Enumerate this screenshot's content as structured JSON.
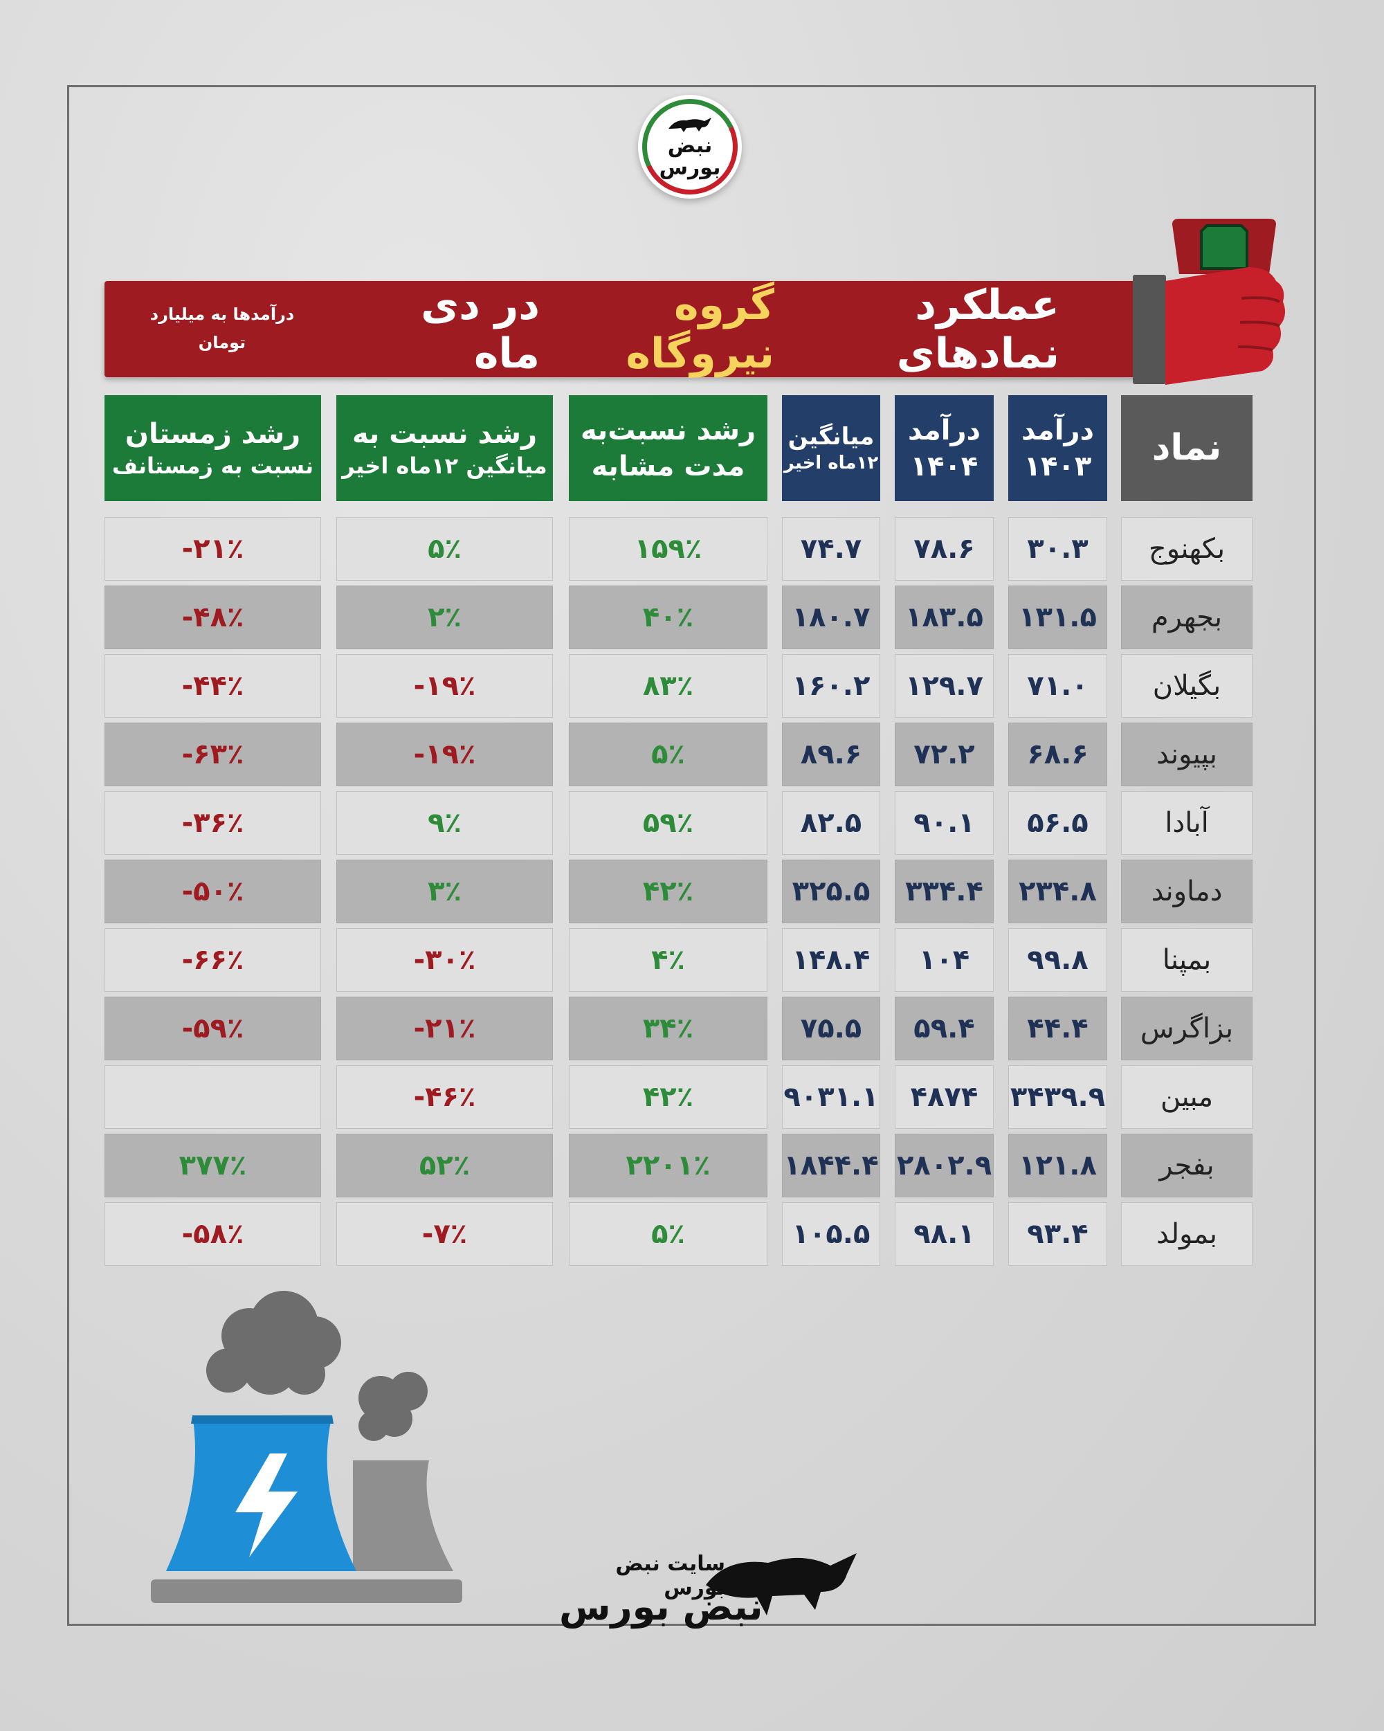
{
  "logo": {
    "name": "نبض بورس"
  },
  "banner": {
    "title_part1": "عملکرد نمادهای",
    "title_highlight": "گروه نیروگاه",
    "title_part2": "در دی ماه",
    "note": "درآمدها به میلیارد تومان",
    "highlight_color": "#f5d35c",
    "background_color": "#9e1b21"
  },
  "table": {
    "headers": {
      "symbol": "نماد",
      "rev1403_line1": "درآمد",
      "rev1403_line2": "۱۴۰۳",
      "rev1404_line1": "درآمد",
      "rev1404_line2": "۱۴۰۴",
      "avg_line1": "میانگین",
      "avg_line2": "۱۲ماه اخیر",
      "g1_line1": "رشد نسبت‌به",
      "g1_line2": "مدت مشابه",
      "g2_line1": "رشد نسبت به",
      "g2_line2": "میانگین ۱۲ماه اخیر",
      "g3_line1": "رشد زمستان",
      "g3_line2": "نسبت به زمستانف"
    },
    "rows": [
      {
        "symbol": "بکهنوج",
        "rev1403": "۳۰.۳",
        "rev1404": "۷۸.۶",
        "avg12": "۷۴.۷",
        "growth_yoy": "۱۵۹٪",
        "growth_avg": "۵٪",
        "growth_winter": "-۲۱٪"
      },
      {
        "symbol": "بجهرم",
        "rev1403": "۱۳۱.۵",
        "rev1404": "۱۸۳.۵",
        "avg12": "۱۸۰.۷",
        "growth_yoy": "۴۰٪",
        "growth_avg": "۲٪",
        "growth_winter": "-۴۸٪"
      },
      {
        "symbol": "بگیلان",
        "rev1403": "۷۱.۰",
        "rev1404": "۱۲۹.۷",
        "avg12": "۱۶۰.۲",
        "growth_yoy": "۸۳٪",
        "growth_avg": "-۱۹٪",
        "growth_winter": "-۴۴٪"
      },
      {
        "symbol": "بپیوند",
        "rev1403": "۶۸.۶",
        "rev1404": "۷۲.۲",
        "avg12": "۸۹.۶",
        "growth_yoy": "۵٪",
        "growth_avg": "-۱۹٪",
        "growth_winter": "-۶۳٪"
      },
      {
        "symbol": "آبادا",
        "rev1403": "۵۶.۵",
        "rev1404": "۹۰.۱",
        "avg12": "۸۲.۵",
        "growth_yoy": "۵۹٪",
        "growth_avg": "۹٪",
        "growth_winter": "-۳۶٪"
      },
      {
        "symbol": "دماوند",
        "rev1403": "۲۳۴.۸",
        "rev1404": "۳۳۴.۴",
        "avg12": "۳۲۵.۵",
        "growth_yoy": "۴۲٪",
        "growth_avg": "۳٪",
        "growth_winter": "-۵۰٪"
      },
      {
        "symbol": "بمپنا",
        "rev1403": "۹۹.۸",
        "rev1404": "۱۰۴",
        "avg12": "۱۴۸.۴",
        "growth_yoy": "۴٪",
        "growth_avg": "-۳۰٪",
        "growth_winter": "-۶۶٪"
      },
      {
        "symbol": "بزاگرس",
        "rev1403": "۴۴.۴",
        "rev1404": "۵۹.۴",
        "avg12": "۷۵.۵",
        "growth_yoy": "۳۴٪",
        "growth_avg": "-۲۱٪",
        "growth_winter": "-۵۹٪"
      },
      {
        "symbol": "مبین",
        "rev1403": "۳۴۳۹.۹",
        "rev1404": "۴۸۷۴",
        "avg12": "۹۰۳۱.۱",
        "growth_yoy": "۴۲٪",
        "growth_avg": "-۴۶٪",
        "growth_winter": ""
      },
      {
        "symbol": "بفجر",
        "rev1403": "۱۲۱.۸",
        "rev1404": "۲۸۰۲.۹",
        "avg12": "۱۸۴۴.۴",
        "growth_yoy": "۲۲۰۱٪",
        "growth_avg": "۵۲٪",
        "growth_winter": "۳۷۷٪"
      },
      {
        "symbol": "بمولد",
        "rev1403": "۹۳.۴",
        "rev1404": "۹۸.۱",
        "avg12": "۱۰۵.۵",
        "growth_yoy": "۵٪",
        "growth_avg": "-۷٪",
        "growth_winter": "-۵۸٪"
      }
    ],
    "colors": {
      "symbol_header": "#5a5a5a",
      "revenue_header": "#233f69",
      "growth_header": "#1d7b3a",
      "positive": "#2e8b3a",
      "negative": "#9e1b21"
    }
  },
  "footer": {
    "caption": "سایت نبض بورس",
    "brand": "نبض بورس"
  },
  "icons": [
    "bull-logo-icon",
    "hand-gauge-icon",
    "power-plant-icon",
    "bolt-icon"
  ]
}
